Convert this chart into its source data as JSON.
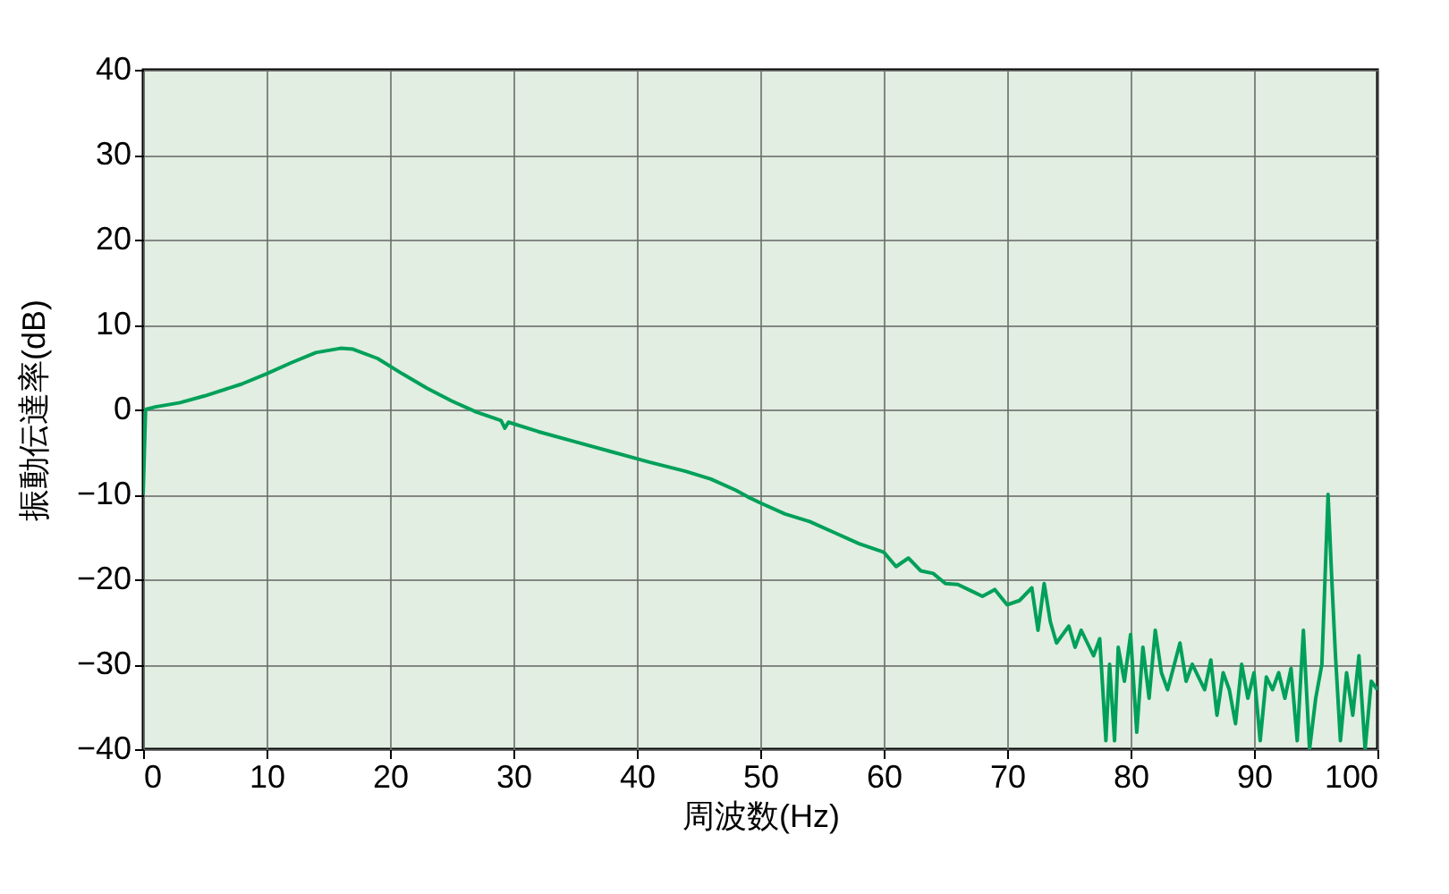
{
  "chart_data": {
    "type": "line",
    "xlabel": "周波数(Hz)",
    "ylabel": "振動伝達率(dB)",
    "xlim": [
      0,
      100
    ],
    "ylim": [
      -40,
      40
    ],
    "xticks": [
      0,
      10,
      20,
      30,
      40,
      50,
      60,
      70,
      80,
      90,
      100
    ],
    "yticks": [
      -40,
      -30,
      -20,
      -10,
      0,
      10,
      20,
      30,
      40
    ],
    "grid": true,
    "series": [
      {
        "color": "#00a05a",
        "x": [
          0,
          0.2,
          1,
          3,
          5,
          8,
          10,
          12,
          14,
          16,
          17,
          19,
          21,
          23,
          25,
          27,
          29,
          29.3,
          29.6,
          32,
          35,
          38,
          41,
          44,
          46,
          48,
          49,
          50,
          52,
          54,
          56,
          58,
          60,
          61,
          62,
          63,
          64,
          65,
          66,
          67,
          68,
          69,
          70,
          71,
          72,
          72.5,
          73,
          73.5,
          74,
          75,
          75.5,
          76,
          77,
          77.5,
          78,
          78.3,
          78.7,
          79,
          79.5,
          80,
          80.5,
          81,
          81.5,
          82,
          82.5,
          83,
          84,
          84.5,
          85,
          86,
          86.5,
          87,
          87.5,
          88,
          88.5,
          89,
          89.5,
          90,
          90.5,
          91,
          91.5,
          92,
          92.5,
          93,
          93.5,
          94,
          94.5,
          95,
          95.5,
          96,
          96.3,
          96.6,
          97,
          97.5,
          98,
          98.5,
          99,
          99.5,
          100
        ],
        "values": [
          -10,
          0,
          0.3,
          0.8,
          1.6,
          3,
          4.2,
          5.5,
          6.7,
          7.2,
          7.1,
          6,
          4.2,
          2.5,
          1,
          -0.3,
          -1.3,
          -2.2,
          -1.5,
          -2.6,
          -3.8,
          -5,
          -6.2,
          -7.3,
          -8.2,
          -9.5,
          -10.3,
          -11,
          -12.3,
          -13.2,
          -14.5,
          -15.8,
          -16.8,
          -18.5,
          -17.5,
          -19,
          -19.3,
          -20.5,
          -20.6,
          -21.3,
          -22,
          -21.2,
          -23,
          -22.5,
          -21,
          -26,
          -20.5,
          -25,
          -27.5,
          -25.5,
          -28,
          -26,
          -29,
          -27,
          -39,
          -30,
          -39,
          -28,
          -32,
          -26.5,
          -38,
          -28,
          -34,
          -26,
          -31,
          -33,
          -27.5,
          -32,
          -30,
          -33,
          -29.5,
          -36,
          -31,
          -33,
          -37,
          -30,
          -34,
          -31,
          -39,
          -31.5,
          -33,
          -31,
          -34,
          -30.5,
          -39,
          -26,
          -40,
          -34,
          -30,
          -10,
          -20,
          -29,
          -39,
          -31,
          -36,
          -29,
          -40,
          -32,
          -33
        ]
      }
    ]
  }
}
